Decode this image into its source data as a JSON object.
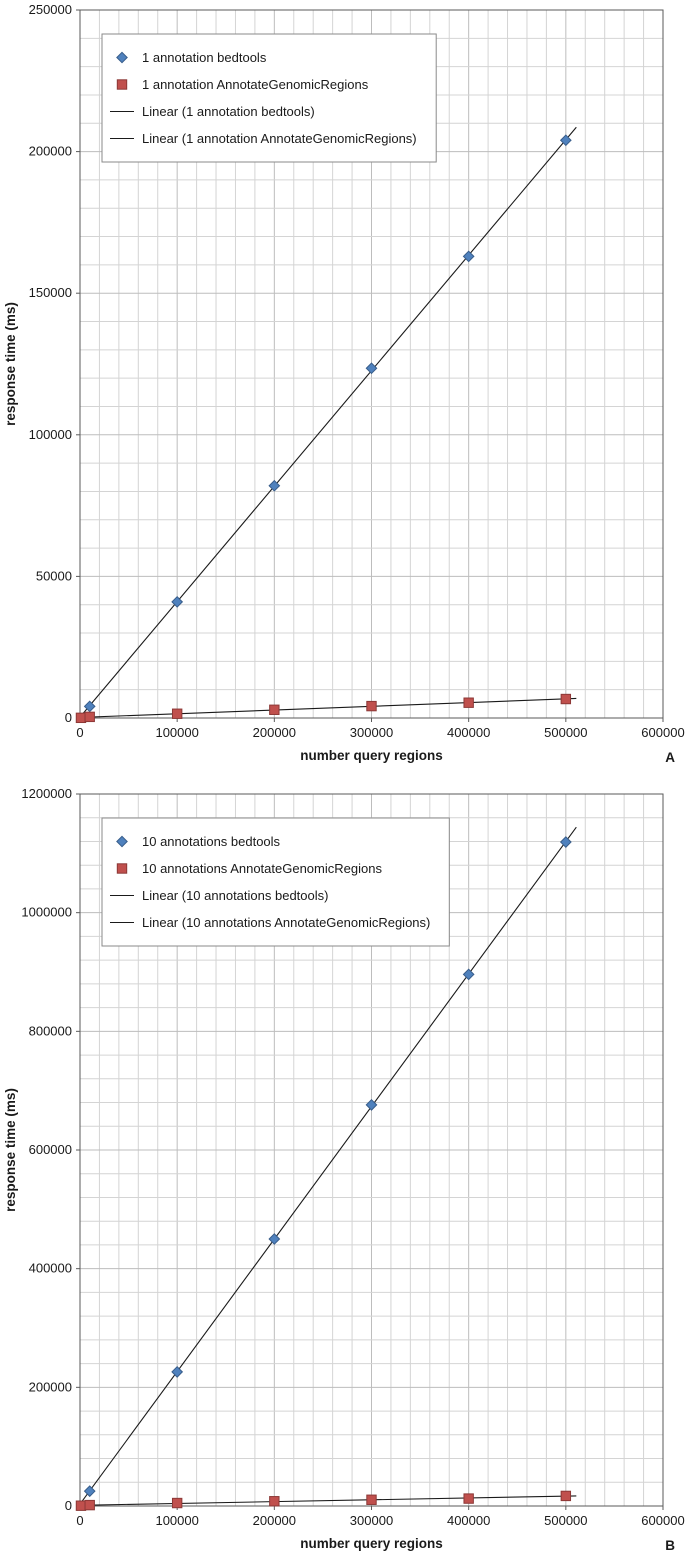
{
  "figure": {
    "background": "#ffffff",
    "description": "Two stacked Excel-style scatter charts comparing response time of bedtools vs AnnotateGenomicRegions"
  },
  "chart_data": [
    {
      "type": "scatter",
      "corner_label": "A",
      "title": "",
      "xlabel": "number query regions",
      "ylabel": "response time (ms)",
      "xlim": [
        0,
        600000
      ],
      "ylim": [
        0,
        250000
      ],
      "x_major": 100000,
      "x_minor": 20000,
      "y_major": 50000,
      "y_minor": 10000,
      "x_ticks": [
        0,
        100000,
        200000,
        300000,
        400000,
        500000,
        600000
      ],
      "y_ticks": [
        0,
        50000,
        100000,
        150000,
        200000,
        250000
      ],
      "grid": true,
      "legend_position": "top-left",
      "series": [
        {
          "name": "1 annotation bedtools",
          "marker": "diamond",
          "color": "#4f81bd",
          "border": "#385d8a",
          "trendline": true,
          "x": [
            10000,
            100000,
            200000,
            300000,
            400000,
            500000
          ],
          "y": [
            4100,
            41000,
            82000,
            123500,
            163000,
            204000
          ]
        },
        {
          "name": "1 annotation AnnotateGenomicRegions",
          "marker": "square",
          "color": "#c0504d",
          "border": "#8c3836",
          "trendline": true,
          "x": [
            1000,
            10000,
            100000,
            200000,
            300000,
            400000,
            500000
          ],
          "y": [
            60,
            400,
            1500,
            2900,
            4200,
            5400,
            6700
          ]
        }
      ],
      "legend": [
        {
          "symbol": "diamond",
          "color": "#4f81bd",
          "border": "#385d8a",
          "label": "1 annotation bedtools"
        },
        {
          "symbol": "square",
          "color": "#c0504d",
          "border": "#8c3836",
          "label": "1 annotation AnnotateGenomicRegions"
        },
        {
          "symbol": "line",
          "color": "#1a1a1a",
          "border": "#1a1a1a",
          "label": "Linear (1 annotation bedtools)"
        },
        {
          "symbol": "line",
          "color": "#1a1a1a",
          "border": "#1a1a1a",
          "label": "Linear (1 annotation AnnotateGenomicRegions)"
        }
      ]
    },
    {
      "type": "scatter",
      "corner_label": "B",
      "title": "",
      "xlabel": "number query regions",
      "ylabel": "response time (ms)",
      "xlim": [
        0,
        600000
      ],
      "ylim": [
        0,
        1200000
      ],
      "x_major": 100000,
      "x_minor": 20000,
      "y_major": 200000,
      "y_minor": 40000,
      "x_ticks": [
        0,
        100000,
        200000,
        300000,
        400000,
        500000,
        600000
      ],
      "y_ticks": [
        0,
        200000,
        400000,
        600000,
        800000,
        1000000,
        1200000
      ],
      "grid": true,
      "legend_position": "top-left",
      "series": [
        {
          "name": "10 annotations bedtools",
          "marker": "diamond",
          "color": "#4f81bd",
          "border": "#385d8a",
          "trendline": true,
          "x": [
            10000,
            100000,
            200000,
            300000,
            400000,
            500000
          ],
          "y": [
            25000,
            226000,
            450000,
            676000,
            896000,
            1119000
          ]
        },
        {
          "name": "10 annotations AnnotateGenomicRegions",
          "marker": "square",
          "color": "#c0504d",
          "border": "#8c3836",
          "trendline": true,
          "x": [
            1000,
            10000,
            100000,
            200000,
            300000,
            400000,
            500000
          ],
          "y": [
            500,
            1500,
            5000,
            8000,
            10500,
            12500,
            17000
          ]
        }
      ],
      "legend": [
        {
          "symbol": "diamond",
          "color": "#4f81bd",
          "border": "#385d8a",
          "label": "10 annotations bedtools"
        },
        {
          "symbol": "square",
          "color": "#c0504d",
          "border": "#8c3836",
          "label": "10 annotations AnnotateGenomicRegions"
        },
        {
          "symbol": "line",
          "color": "#1a1a1a",
          "border": "#1a1a1a",
          "label": "Linear (10 annotations bedtools)"
        },
        {
          "symbol": "line",
          "color": "#1a1a1a",
          "border": "#1a1a1a",
          "label": "Linear (10 annotations AnnotateGenomicRegions)"
        }
      ]
    }
  ]
}
